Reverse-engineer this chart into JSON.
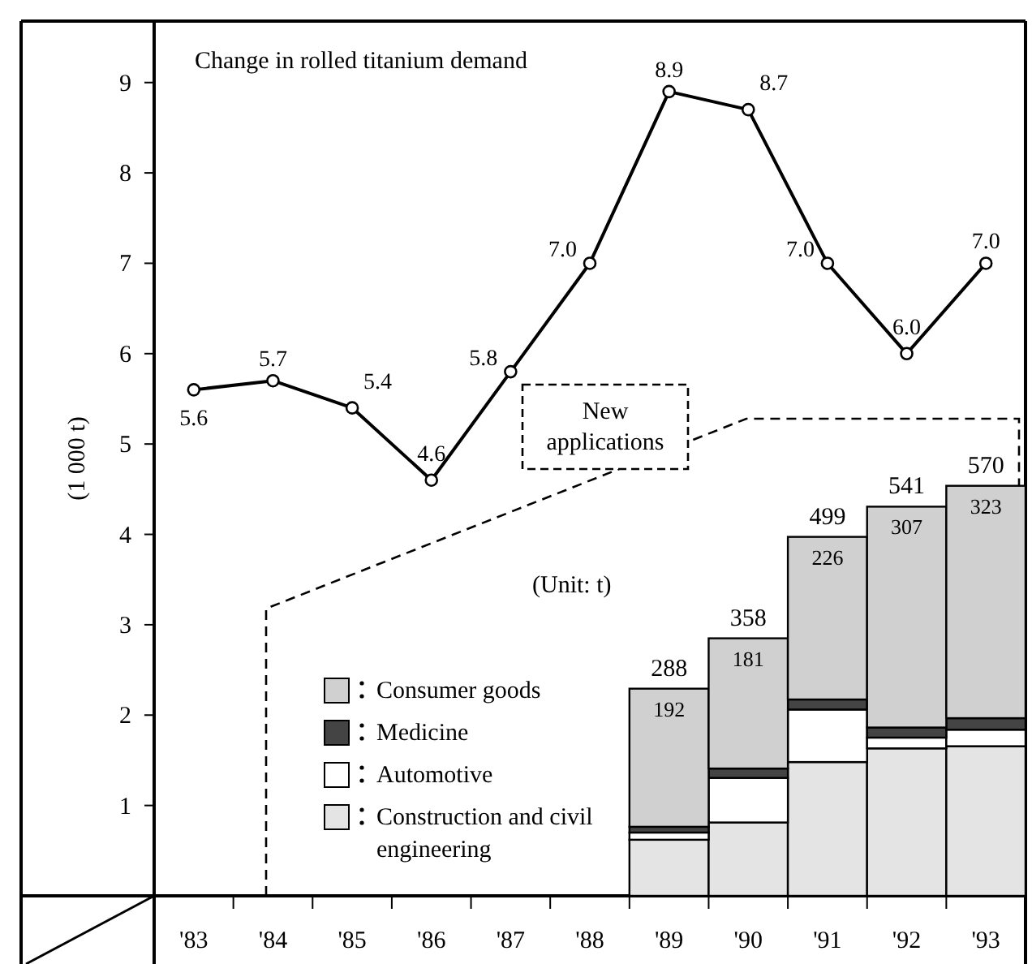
{
  "chart_data": {
    "type": "line",
    "title": "Change in rolled titanium demand",
    "ylabel": "(1 000 t)",
    "categories": [
      "'83",
      "'84",
      "'85",
      "'86",
      "'87",
      "'88",
      "'89",
      "'90",
      "'91",
      "'92",
      "'93"
    ],
    "series": [
      {
        "color": "#000000",
        "values": [
          5.6,
          5.7,
          5.4,
          4.6,
          5.8,
          7.0,
          8.9,
          8.7,
          7.0,
          6.0,
          7.0
        ],
        "value_labels": [
          "5.6",
          "5.7",
          "5.4",
          "4.6",
          "5.8",
          "7.0",
          "8.9",
          "8.7",
          "7.0",
          "6.0",
          "7.0"
        ]
      },
      {
        "type": "bar",
        "axis": "y2",
        "name": "Construction and civil engineering",
        "color": "#e4e4e4",
        "values": [
          null,
          null,
          null,
          null,
          null,
          null,
          78,
          102,
          186,
          205,
          208
        ]
      },
      {
        "type": "bar",
        "axis": "y2",
        "name": "Automotive",
        "color": "#ffffff",
        "values": [
          null,
          null,
          null,
          null,
          null,
          null,
          10,
          62,
          73,
          15,
          23
        ]
      },
      {
        "type": "bar",
        "axis": "y2",
        "name": "Medicine",
        "color": "#444444",
        "values": [
          null,
          null,
          null,
          null,
          null,
          null,
          8,
          13,
          14,
          14,
          16
        ]
      },
      {
        "type": "bar",
        "axis": "y2",
        "name": "Consumer goods",
        "color": "#d0d0d0",
        "values": [
          null,
          null,
          null,
          null,
          null,
          null,
          192,
          181,
          226,
          307,
          323
        ],
        "value_labels": [
          null,
          null,
          null,
          null,
          null,
          null,
          "192",
          "181",
          "226",
          "307",
          "323"
        ]
      }
    ],
    "stacked": true,
    "totals": [
      null,
      null,
      null,
      null,
      null,
      null,
      "288",
      "358",
      "499",
      "541",
      "570"
    ],
    "annotations": [
      "New applications",
      "(Unit: t)"
    ],
    "ylim": [
      0,
      9.68
    ],
    "yticks": [
      1,
      2,
      3,
      4,
      5,
      6,
      7,
      8,
      9
    ],
    "y2lim": [
      0,
      1216
    ],
    "marker": "circle",
    "line_style": "solid",
    "legend": "bottom left"
  }
}
